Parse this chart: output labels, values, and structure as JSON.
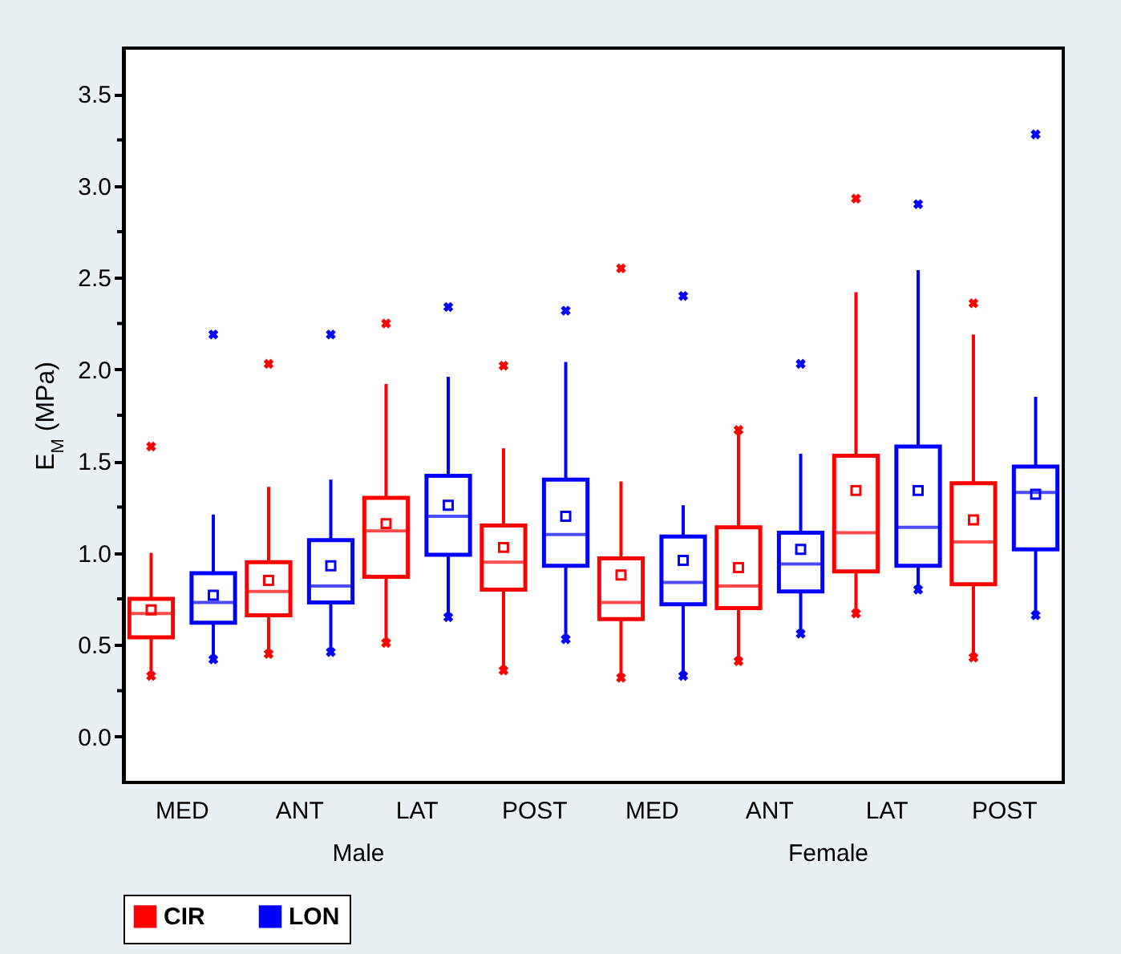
{
  "chart_data": {
    "type": "box",
    "ylabel": "E$_{M}$ (MPa)",
    "categories": [
      "MED",
      "ANT",
      "LAT",
      "POST",
      "MED",
      "ANT",
      "LAT",
      "POST"
    ],
    "annotations": [
      "Male",
      "Female"
    ],
    "ylim": [
      -0.25,
      3.75
    ],
    "yticks": [
      {
        "value": 0,
        "label": "0.0"
      },
      {
        "value": 0.5,
        "label": "0.5"
      },
      {
        "value": 1,
        "label": "1.0"
      },
      {
        "value": 1.5,
        "label": "1.5"
      },
      {
        "value": 2,
        "label": "2.0"
      },
      {
        "value": 2.5,
        "label": "2.5"
      },
      {
        "value": 3,
        "label": "3.0"
      },
      {
        "value": 3.5,
        "label": "3.5"
      },
      {
        "value": 0.25,
        "label": null
      },
      {
        "value": 0.75,
        "label": null
      },
      {
        "value": 1.25,
        "label": null
      },
      {
        "value": 1.75,
        "label": null
      },
      {
        "value": 2.25,
        "label": null
      },
      {
        "value": 2.75,
        "label": null
      },
      {
        "value": 3.25,
        "label": null
      }
    ],
    "grid": false,
    "legend": "bottom",
    "series": [
      {
        "name": "CIR",
        "color": "#ff0000",
        "boxes": [
          {
            "low": 0.33,
            "q1": 0.54,
            "median": 0.67,
            "q3": 0.75,
            "high": 1.0,
            "mean": 0.69,
            "outliers": [
              1.58,
              0.33
            ]
          },
          {
            "low": 0.45,
            "q1": 0.66,
            "median": 0.79,
            "q3": 0.95,
            "high": 1.36,
            "mean": 0.85,
            "outliers": [
              2.03,
              0.45
            ]
          },
          {
            "low": 0.51,
            "q1": 0.87,
            "median": 1.12,
            "q3": 1.3,
            "high": 1.92,
            "mean": 1.16,
            "outliers": [
              2.25,
              0.51
            ]
          },
          {
            "low": 0.36,
            "q1": 0.8,
            "median": 0.95,
            "q3": 1.15,
            "high": 1.57,
            "mean": 1.03,
            "outliers": [
              2.02,
              0.36
            ]
          },
          {
            "low": 0.32,
            "q1": 0.64,
            "median": 0.73,
            "q3": 0.97,
            "high": 1.39,
            "mean": 0.88,
            "outliers": [
              2.55,
              0.32
            ]
          },
          {
            "low": 0.41,
            "q1": 0.7,
            "median": 0.82,
            "q3": 1.14,
            "high": 1.67,
            "mean": 0.92,
            "outliers": [
              1.67,
              0.41
            ]
          },
          {
            "low": 0.67,
            "q1": 0.9,
            "median": 1.11,
            "q3": 1.53,
            "high": 2.42,
            "mean": 1.34,
            "outliers": [
              2.93,
              0.67
            ]
          },
          {
            "low": 0.43,
            "q1": 0.83,
            "median": 1.06,
            "q3": 1.38,
            "high": 2.19,
            "mean": 1.18,
            "outliers": [
              2.36,
              0.43
            ]
          }
        ]
      },
      {
        "name": "LON",
        "color": "#0000ff",
        "boxes": [
          {
            "low": 0.42,
            "q1": 0.62,
            "median": 0.73,
            "q3": 0.89,
            "high": 1.21,
            "mean": 0.77,
            "outliers": [
              2.19,
              0.42
            ]
          },
          {
            "low": 0.46,
            "q1": 0.73,
            "median": 0.82,
            "q3": 1.07,
            "high": 1.4,
            "mean": 0.93,
            "outliers": [
              2.19,
              0.46
            ]
          },
          {
            "low": 0.65,
            "q1": 0.99,
            "median": 1.2,
            "q3": 1.42,
            "high": 1.96,
            "mean": 1.26,
            "outliers": [
              2.34,
              0.65
            ]
          },
          {
            "low": 0.53,
            "q1": 0.93,
            "median": 1.1,
            "q3": 1.4,
            "high": 2.04,
            "mean": 1.2,
            "outliers": [
              2.32,
              0.53
            ]
          },
          {
            "low": 0.33,
            "q1": 0.72,
            "median": 0.84,
            "q3": 1.09,
            "high": 1.26,
            "mean": 0.96,
            "outliers": [
              2.4,
              0.33
            ]
          },
          {
            "low": 0.56,
            "q1": 0.79,
            "median": 0.94,
            "q3": 1.11,
            "high": 1.54,
            "mean": 1.02,
            "outliers": [
              2.03,
              0.56
            ]
          },
          {
            "low": 0.8,
            "q1": 0.93,
            "median": 1.14,
            "q3": 1.58,
            "high": 2.54,
            "mean": 1.34,
            "outliers": [
              2.9,
              0.8
            ]
          },
          {
            "low": 0.66,
            "q1": 1.02,
            "median": 1.33,
            "q3": 1.47,
            "high": 1.85,
            "mean": 1.32,
            "outliers": [
              3.28,
              0.66
            ]
          }
        ]
      }
    ]
  }
}
